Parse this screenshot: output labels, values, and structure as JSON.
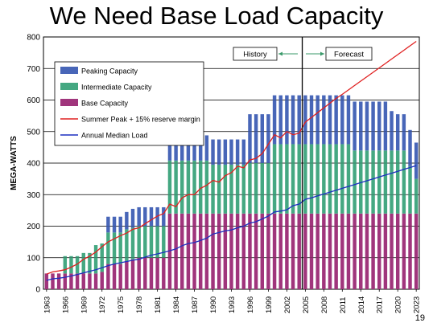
{
  "slide": {
    "title": "We Need Base Load Capacity",
    "page_number": "19"
  },
  "colors": {
    "peaking": "#4866B8",
    "intermediate": "#45A882",
    "base": "#A0357C",
    "summer_peak": "#E02020",
    "median_load": "#1C2FC0",
    "grid": "#000000"
  },
  "chart_data": {
    "type": "bar",
    "stacked": true,
    "ylabel": "MEGA-WATTS",
    "xlabel": "",
    "ylim": [
      0,
      800
    ],
    "yticks": [
      0,
      100,
      200,
      300,
      400,
      500,
      600,
      700,
      800
    ],
    "grid": "horizontal",
    "legend_position": "top-left",
    "divider_year": 2004.5,
    "annotations": {
      "history": "History",
      "forecast": "Forecast"
    },
    "x_tick_labels": [
      "1963",
      "1966",
      "1969",
      "1972",
      "1975",
      "1978",
      "1981",
      "1984",
      "1987",
      "1990",
      "1993",
      "1996",
      "1999",
      "2002",
      "2005",
      "2008",
      "2011",
      "2014",
      "2017",
      "2020",
      "2023"
    ],
    "x_tick_positions": [
      1963,
      1966,
      1969,
      1972,
      1975,
      1978,
      1981,
      1984,
      1987,
      1990,
      1993,
      1996,
      1999,
      2002,
      2005,
      2008,
      2011,
      2014,
      2017,
      2020,
      2023
    ],
    "years": [
      1963,
      1964,
      1965,
      1966,
      1967,
      1968,
      1969,
      1970,
      1971,
      1972,
      1973,
      1974,
      1975,
      1976,
      1977,
      1978,
      1979,
      1980,
      1981,
      1982,
      1983,
      1984,
      1985,
      1986,
      1987,
      1988,
      1989,
      1990,
      1991,
      1992,
      1993,
      1994,
      1995,
      1996,
      1997,
      1998,
      1999,
      2000,
      2001,
      2002,
      2003,
      2004,
      2005,
      2006,
      2007,
      2008,
      2009,
      2010,
      2011,
      2012,
      2013,
      2014,
      2015,
      2016,
      2017,
      2018,
      2019,
      2020,
      2021,
      2022,
      2023
    ],
    "series": [
      {
        "name": "Peaking Capacity",
        "kind": "bar",
        "color_key": "peaking",
        "values": [
          0,
          0,
          0,
          0,
          0,
          0,
          0,
          0,
          0,
          0,
          50,
          50,
          50,
          55,
          60,
          60,
          60,
          60,
          60,
          60,
          80,
          80,
          80,
          80,
          80,
          80,
          80,
          80,
          80,
          80,
          80,
          80,
          80,
          155,
          155,
          155,
          155,
          155,
          155,
          155,
          155,
          155,
          155,
          155,
          155,
          155,
          155,
          155,
          155,
          155,
          155,
          155,
          155,
          155,
          155,
          155,
          125,
          115,
          115,
          115,
          115
        ]
      },
      {
        "name": "Intermediate Capacity",
        "kind": "bar",
        "color_key": "intermediate",
        "values": [
          0,
          0,
          0,
          55,
          55,
          55,
          65,
          65,
          90,
          90,
          100,
          100,
          100,
          100,
          100,
          100,
          100,
          100,
          100,
          100,
          168,
          168,
          168,
          168,
          168,
          168,
          168,
          155,
          155,
          155,
          155,
          155,
          155,
          160,
          160,
          160,
          160,
          220,
          220,
          220,
          220,
          220,
          220,
          220,
          220,
          220,
          220,
          220,
          220,
          220,
          200,
          200,
          200,
          200,
          200,
          200,
          200,
          200,
          200,
          150,
          110
        ]
      },
      {
        "name": "Base Capacity",
        "kind": "bar",
        "color_key": "base",
        "values": [
          50,
          50,
          50,
          50,
          50,
          50,
          50,
          50,
          50,
          55,
          80,
          80,
          80,
          90,
          95,
          100,
          100,
          100,
          100,
          100,
          240,
          240,
          240,
          240,
          240,
          240,
          240,
          240,
          240,
          240,
          240,
          240,
          240,
          240,
          240,
          240,
          240,
          240,
          240,
          240,
          240,
          240,
          240,
          240,
          240,
          240,
          240,
          240,
          240,
          240,
          240,
          240,
          240,
          240,
          240,
          240,
          240,
          240,
          240,
          240,
          240
        ]
      },
      {
        "name": "Summer Peak + 15% reserve margin",
        "kind": "line",
        "color_key": "summer_peak",
        "values": [
          48,
          55,
          58,
          62,
          70,
          80,
          95,
          105,
          118,
          135,
          150,
          160,
          170,
          178,
          190,
          195,
          208,
          220,
          232,
          240,
          270,
          262,
          290,
          300,
          300,
          320,
          330,
          345,
          340,
          360,
          370,
          390,
          385,
          410,
          415,
          430,
          460,
          490,
          480,
          500,
          490,
          495,
          530,
          545,
          560,
          575,
          590,
          605,
          618,
          632,
          646,
          660,
          674,
          688,
          702,
          716,
          730,
          744,
          758,
          772,
          786
        ]
      },
      {
        "name": "Annual Median Load",
        "kind": "line",
        "color_key": "median_load",
        "values": [
          28,
          33,
          35,
          38,
          42,
          47,
          52,
          57,
          62,
          68,
          75,
          80,
          84,
          88,
          92,
          95,
          102,
          108,
          112,
          117,
          122,
          128,
          138,
          145,
          148,
          155,
          162,
          175,
          180,
          185,
          188,
          195,
          200,
          210,
          214,
          223,
          232,
          245,
          248,
          252,
          265,
          270,
          285,
          290,
          296,
          302,
          308,
          314,
          320,
          326,
          332,
          338,
          344,
          350,
          356,
          362,
          368,
          374,
          380,
          386,
          392
        ]
      }
    ]
  }
}
